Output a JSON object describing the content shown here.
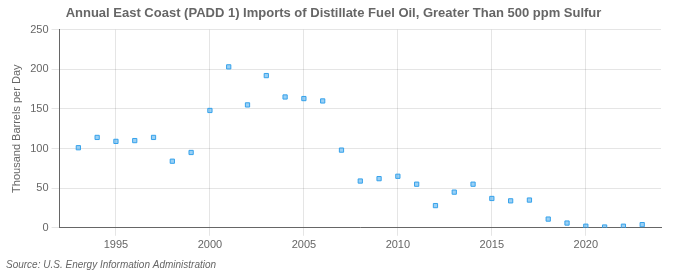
{
  "chart_data": {
    "type": "scatter",
    "title": "Annual East Coast (PADD 1) Imports of Distillate Fuel Oil, Greater Than 500 ppm Sulfur",
    "ylabel": "Thousand Barrels per Day",
    "annotation": "Source: U.S. Energy Information Administration",
    "x": [
      1993,
      1994,
      1995,
      1996,
      1997,
      1998,
      1999,
      2000,
      2001,
      2002,
      2003,
      2004,
      2005,
      2006,
      2007,
      2008,
      2009,
      2010,
      2011,
      2012,
      2013,
      2014,
      2015,
      2016,
      2017,
      2018,
      2019,
      2020,
      2021,
      2022,
      2023
    ],
    "values": [
      101,
      114,
      109,
      110,
      114,
      84,
      95,
      148,
      203,
      155,
      192,
      165,
      163,
      160,
      98,
      59,
      62,
      65,
      55,
      28,
      45,
      55,
      37,
      34,
      35,
      11,
      6,
      2,
      1,
      2,
      4
    ],
    "marker": "square",
    "xlim": [
      1992,
      2024
    ],
    "xticks": [
      1995,
      2000,
      2005,
      2010,
      2015,
      2020
    ],
    "ylim": [
      0,
      250
    ],
    "yticks": [
      0,
      50,
      100,
      150,
      200,
      250
    ],
    "grid": true
  }
}
